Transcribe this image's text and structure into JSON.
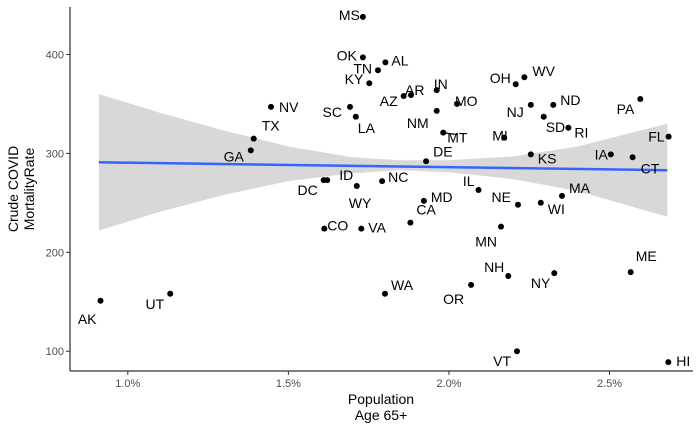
{
  "chart_data": {
    "type": "scatter",
    "title": "",
    "xlabel_lines": [
      "Population",
      "Age 65+"
    ],
    "ylabel_lines": [
      "Crude COVID",
      "MortalityRate"
    ],
    "xlim": [
      0.0082,
      0.0276
    ],
    "ylim": [
      80,
      448
    ],
    "xticks": [
      0.01,
      0.015,
      0.02,
      0.025
    ],
    "xtick_labels": [
      "1.0%",
      "1.5%",
      "2.0%",
      "2.5%"
    ],
    "yticks": [
      100,
      200,
      300,
      400
    ],
    "ytick_labels": [
      "100",
      "200",
      "300",
      "400"
    ],
    "grid": false,
    "colors": {
      "point": "#000000",
      "trend": "#3366ff",
      "band": "#bebebe"
    },
    "trend_line": {
      "x": [
        0.0091,
        0.0268
      ],
      "y": [
        291,
        283
      ]
    },
    "confidence_band": {
      "x": [
        0.0091,
        0.011,
        0.013,
        0.015,
        0.017,
        0.0185,
        0.02,
        0.022,
        0.024,
        0.0268
      ],
      "upper": [
        360,
        341,
        323,
        307,
        296,
        293,
        293,
        297,
        307,
        330
      ],
      "lower": [
        222,
        241,
        258,
        272,
        280,
        283,
        281,
        274,
        262,
        236
      ]
    },
    "points": [
      {
        "label": "MS",
        "x": 0.01732,
        "y": 438
      },
      {
        "label": "OK",
        "x": 0.01732,
        "y": 397
      },
      {
        "label": "AL",
        "x": 0.01802,
        "y": 392
      },
      {
        "label": "TN",
        "x": 0.01779,
        "y": 384
      },
      {
        "label": "KY",
        "x": 0.01752,
        "y": 371
      },
      {
        "label": "AR",
        "x": 0.01882,
        "y": 359
      },
      {
        "label": "AZ",
        "x": 0.01859,
        "y": 358
      },
      {
        "label": "IN",
        "x": 0.01962,
        "y": 364
      },
      {
        "label": "SC",
        "x": 0.01692,
        "y": 347
      },
      {
        "label": "LA",
        "x": 0.0171,
        "y": 337
      },
      {
        "label": "NV",
        "x": 0.01446,
        "y": 347
      },
      {
        "label": "TX",
        "x": 0.01392,
        "y": 315
      },
      {
        "label": "GA",
        "x": 0.01383,
        "y": 303
      },
      {
        "label": "NM",
        "x": 0.01962,
        "y": 343
      },
      {
        "label": "MO",
        "x": 0.02025,
        "y": 350
      },
      {
        "label": "MT",
        "x": 0.01982,
        "y": 321
      },
      {
        "label": "OH",
        "x": 0.02208,
        "y": 370
      },
      {
        "label": "WV",
        "x": 0.02235,
        "y": 377
      },
      {
        "label": "NJ",
        "x": 0.02255,
        "y": 349
      },
      {
        "label": "ND",
        "x": 0.02325,
        "y": 349
      },
      {
        "label": "SD",
        "x": 0.02295,
        "y": 337
      },
      {
        "label": "RI",
        "x": 0.02372,
        "y": 326
      },
      {
        "label": "PA",
        "x": 0.02596,
        "y": 355
      },
      {
        "label": "FL",
        "x": 0.02684,
        "y": 317
      },
      {
        "label": "CT",
        "x": 0.02572,
        "y": 296
      },
      {
        "label": "IA",
        "x": 0.02504,
        "y": 299
      },
      {
        "label": "MI",
        "x": 0.02172,
        "y": 316
      },
      {
        "label": "KS",
        "x": 0.02255,
        "y": 299
      },
      {
        "label": "DE",
        "x": 0.01929,
        "y": 292
      },
      {
        "label": "ID",
        "x": 0.01621,
        "y": 273
      },
      {
        "label": "DC",
        "x": 0.0161,
        "y": 273
      },
      {
        "label": "NC",
        "x": 0.01792,
        "y": 272
      },
      {
        "label": "WY",
        "x": 0.01713,
        "y": 267
      },
      {
        "label": "IL",
        "x": 0.02092,
        "y": 263
      },
      {
        "label": "MD",
        "x": 0.01922,
        "y": 252
      },
      {
        "label": "MA",
        "x": 0.02352,
        "y": 257
      },
      {
        "label": "WI",
        "x": 0.02286,
        "y": 250
      },
      {
        "label": "NE",
        "x": 0.02215,
        "y": 248
      },
      {
        "label": "CA",
        "x": 0.0188,
        "y": 230
      },
      {
        "label": "MN",
        "x": 0.02162,
        "y": 226
      },
      {
        "label": "CO",
        "x": 0.01612,
        "y": 224
      },
      {
        "label": "VA",
        "x": 0.01727,
        "y": 224
      },
      {
        "label": "NH",
        "x": 0.02185,
        "y": 176
      },
      {
        "label": "NY",
        "x": 0.02328,
        "y": 179
      },
      {
        "label": "ME",
        "x": 0.02566,
        "y": 180
      },
      {
        "label": "OR",
        "x": 0.02069,
        "y": 167
      },
      {
        "label": "WA",
        "x": 0.01801,
        "y": 158
      },
      {
        "label": "UT",
        "x": 0.01132,
        "y": 158
      },
      {
        "label": "AK",
        "x": 0.00915,
        "y": 151
      },
      {
        "label": "VT",
        "x": 0.02212,
        "y": 100
      },
      {
        "label": "HI",
        "x": 0.02683,
        "y": 89
      }
    ]
  }
}
